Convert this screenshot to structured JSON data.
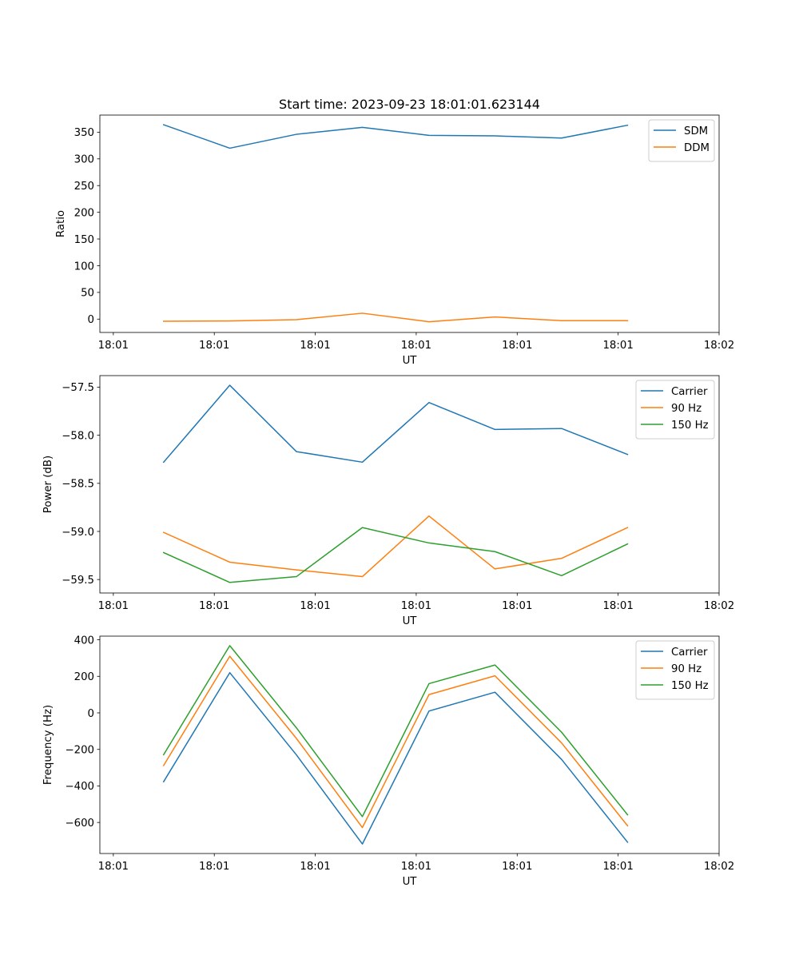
{
  "figure_title": "Start time: 2023-09-23 18:01:01.623144",
  "chart_data": [
    {
      "type": "line",
      "title": "Start time: 2023-09-23 18:01:01.623144",
      "xlabel": "UT",
      "ylabel": "Ratio",
      "xlim": [
        -0.5,
        8.7
      ],
      "ylim": [
        -25,
        382
      ],
      "x_ticks": [
        -0.3,
        1.2,
        2.7,
        4.2,
        5.7,
        7.2,
        8.7
      ],
      "x_tick_labels": [
        "18:01",
        "18:01",
        "18:01",
        "18:01",
        "18:01",
        "18:01",
        "18:02"
      ],
      "y_ticks": [
        0,
        50,
        100,
        150,
        200,
        250,
        300,
        350
      ],
      "y_tick_labels": [
        "0",
        "50",
        "100",
        "150",
        "200",
        "250",
        "300",
        "350"
      ],
      "x": [
        0.447,
        1.43,
        2.42,
        3.4,
        4.39,
        5.37,
        6.36,
        7.34
      ],
      "series": [
        {
          "name": "SDM",
          "color": "#1f77b4",
          "values": [
            364,
            320,
            346,
            359,
            344,
            343,
            339,
            363
          ]
        },
        {
          "name": "DDM",
          "color": "#ff7f0e",
          "values": [
            -4,
            -3.5,
            -1,
            11,
            -5,
            4,
            -3,
            -3
          ]
        }
      ],
      "legend": "top-right"
    },
    {
      "type": "line",
      "title": "",
      "xlabel": "UT",
      "ylabel": "Power (dB)",
      "xlim": [
        -0.5,
        8.7
      ],
      "ylim": [
        -59.64,
        -57.38
      ],
      "x_ticks": [
        -0.3,
        1.2,
        2.7,
        4.2,
        5.7,
        7.2,
        8.7
      ],
      "x_tick_labels": [
        "18:01",
        "18:01",
        "18:01",
        "18:01",
        "18:01",
        "18:01",
        "18:02"
      ],
      "y_ticks": [
        -59.5,
        -59.0,
        -58.5,
        -58.0,
        -57.5
      ],
      "y_tick_labels": [
        "−59.5",
        "−59.0",
        "−58.5",
        "−58.0",
        "−57.5"
      ],
      "x": [
        0.447,
        1.43,
        2.42,
        3.4,
        4.39,
        5.37,
        6.36,
        7.34
      ],
      "series": [
        {
          "name": "Carrier",
          "color": "#1f77b4",
          "values": [
            -58.28,
            -57.48,
            -58.17,
            -58.28,
            -57.66,
            -57.94,
            -57.93,
            -58.2
          ]
        },
        {
          "name": "90 Hz",
          "color": "#ff7f0e",
          "values": [
            -59.01,
            -59.32,
            -59.4,
            -59.47,
            -58.84,
            -59.39,
            -59.28,
            -58.96
          ]
        },
        {
          "name": "150 Hz",
          "color": "#2ca02c",
          "values": [
            -59.22,
            -59.53,
            -59.47,
            -58.96,
            -59.12,
            -59.21,
            -59.46,
            -59.13
          ]
        }
      ],
      "legend": "top-right"
    },
    {
      "type": "line",
      "title": "",
      "xlabel": "UT",
      "ylabel": "Frequency (Hz)",
      "xlim": [
        -0.5,
        8.7
      ],
      "ylim": [
        -770,
        420
      ],
      "x_ticks": [
        -0.3,
        1.2,
        2.7,
        4.2,
        5.7,
        7.2,
        8.7
      ],
      "x_tick_labels": [
        "18:01",
        "18:01",
        "18:01",
        "18:01",
        "18:01",
        "18:01",
        "18:02"
      ],
      "y_ticks": [
        -600,
        -400,
        -200,
        0,
        200,
        400
      ],
      "y_tick_labels": [
        "−600",
        "−400",
        "−200",
        "0",
        "200",
        "400"
      ],
      "x": [
        0.447,
        1.43,
        2.42,
        3.4,
        4.39,
        5.37,
        6.36,
        7.34
      ],
      "series": [
        {
          "name": "Carrier",
          "color": "#1f77b4",
          "values": [
            -377,
            220,
            -230,
            -718,
            10,
            113,
            -255,
            -708
          ]
        },
        {
          "name": "90 Hz",
          "color": "#ff7f0e",
          "values": [
            -288,
            310,
            -140,
            -628,
            100,
            203,
            -165,
            -618
          ]
        },
        {
          "name": "150 Hz",
          "color": "#2ca02c",
          "values": [
            -229,
            368,
            -82,
            -568,
            160,
            262,
            -106,
            -558
          ]
        }
      ],
      "legend": "top-right"
    }
  ]
}
